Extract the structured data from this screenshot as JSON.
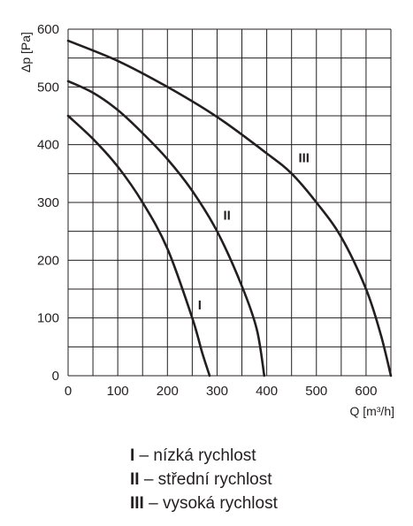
{
  "chart_data": {
    "type": "line",
    "xlabel": "Q [m³/h]",
    "ylabel": "Δp [Pa]",
    "xlim": [
      0,
      650
    ],
    "ylim": [
      0,
      600
    ],
    "x_ticks": [
      0,
      100,
      200,
      300,
      400,
      500,
      600
    ],
    "y_ticks": [
      0,
      100,
      200,
      300,
      400,
      500,
      600
    ],
    "grid": true,
    "series": [
      {
        "name": "I",
        "x": [
          0,
          50,
          100,
          150,
          200,
          250,
          270,
          285
        ],
        "y": [
          450,
          410,
          362,
          300,
          220,
          100,
          40,
          0
        ]
      },
      {
        "name": "II",
        "x": [
          0,
          50,
          100,
          150,
          200,
          250,
          300,
          350,
          380,
          395
        ],
        "y": [
          510,
          490,
          460,
          420,
          375,
          320,
          250,
          155,
          80,
          0
        ]
      },
      {
        "name": "III",
        "x": [
          0,
          100,
          200,
          300,
          400,
          450,
          500,
          550,
          600,
          630,
          650
        ],
        "y": [
          580,
          545,
          500,
          448,
          385,
          350,
          300,
          240,
          150,
          70,
          0
        ]
      }
    ],
    "legend": [
      {
        "num": "I",
        "text": " – nízká rychlost"
      },
      {
        "num": "II",
        "text": " – střední rychlost"
      },
      {
        "num": "III",
        "text": " – vysoká rychlost"
      }
    ]
  }
}
